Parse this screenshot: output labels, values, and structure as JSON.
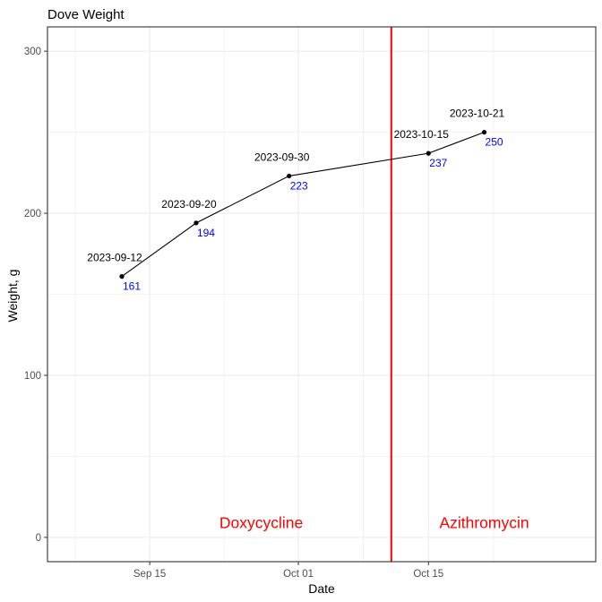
{
  "chart_data": {
    "type": "line",
    "title": "Dove Weight",
    "xlabel": "Date",
    "ylabel": "Weight, g",
    "xlim": [
      "2023-09-04",
      "2023-11-02"
    ],
    "ylim": [
      -15,
      315
    ],
    "x_ticks": [
      {
        "date": "2023-09-15",
        "label": "Sep 15"
      },
      {
        "date": "2023-10-01",
        "label": "Oct 01"
      },
      {
        "date": "2023-10-15",
        "label": "Oct 15"
      }
    ],
    "y_ticks": [
      0,
      100,
      200,
      300
    ],
    "grid": true,
    "series": [
      {
        "points": [
          {
            "x": "2023-09-12",
            "y": 161,
            "date_label": "2023-09-12",
            "value_label": "161"
          },
          {
            "x": "2023-09-20",
            "y": 194,
            "date_label": "2023-09-20",
            "value_label": "194"
          },
          {
            "x": "2023-09-30",
            "y": 223,
            "date_label": "2023-09-30",
            "value_label": "223"
          },
          {
            "x": "2023-10-15",
            "y": 237,
            "date_label": "2023-10-15",
            "value_label": "237"
          },
          {
            "x": "2023-10-21",
            "y": 250,
            "date_label": "2023-10-21",
            "value_label": "250"
          }
        ]
      }
    ],
    "vline": {
      "x": "2023-10-11",
      "color": "#ff0000"
    },
    "annotations": [
      {
        "text": "Doxycycline",
        "x": "2023-09-27",
        "y": 9,
        "color": "#ff0000"
      },
      {
        "text": "Azithromycin",
        "x": "2023-10-21",
        "y": 9,
        "color": "#ff0000"
      }
    ],
    "colors": {
      "line": "#000000",
      "value_labels": "#0000ff",
      "grid": "#ebebeb",
      "panel_border": "#333333"
    }
  }
}
